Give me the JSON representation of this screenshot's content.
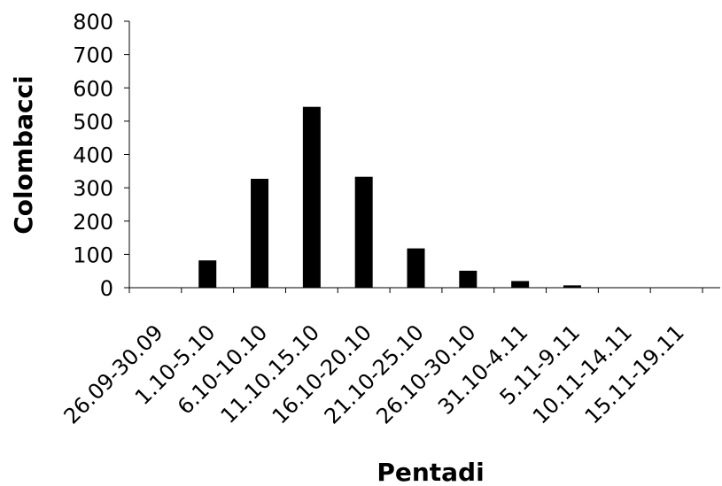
{
  "chart_data": {
    "type": "bar",
    "title": "",
    "xlabel": "Pentadi",
    "ylabel": "Colombacci",
    "categories": [
      "26.09-30.09",
      "1.10-5.10",
      "6.10-10.10",
      "11.10.15.10",
      "16.10-20.10",
      "21.10-25.10",
      "26.10-30.10",
      "31.10-4.11",
      "5.11-9.11",
      "10.11-14.11",
      "15.11-19.11"
    ],
    "values": [
      0,
      82,
      327,
      543,
      333,
      118,
      51,
      20,
      7,
      0,
      0
    ],
    "ylim": [
      0,
      800
    ],
    "yticks": [
      0,
      100,
      200,
      300,
      400,
      500,
      600,
      700,
      800
    ],
    "grid": false,
    "legend": "none",
    "bar_color": "#000000"
  }
}
